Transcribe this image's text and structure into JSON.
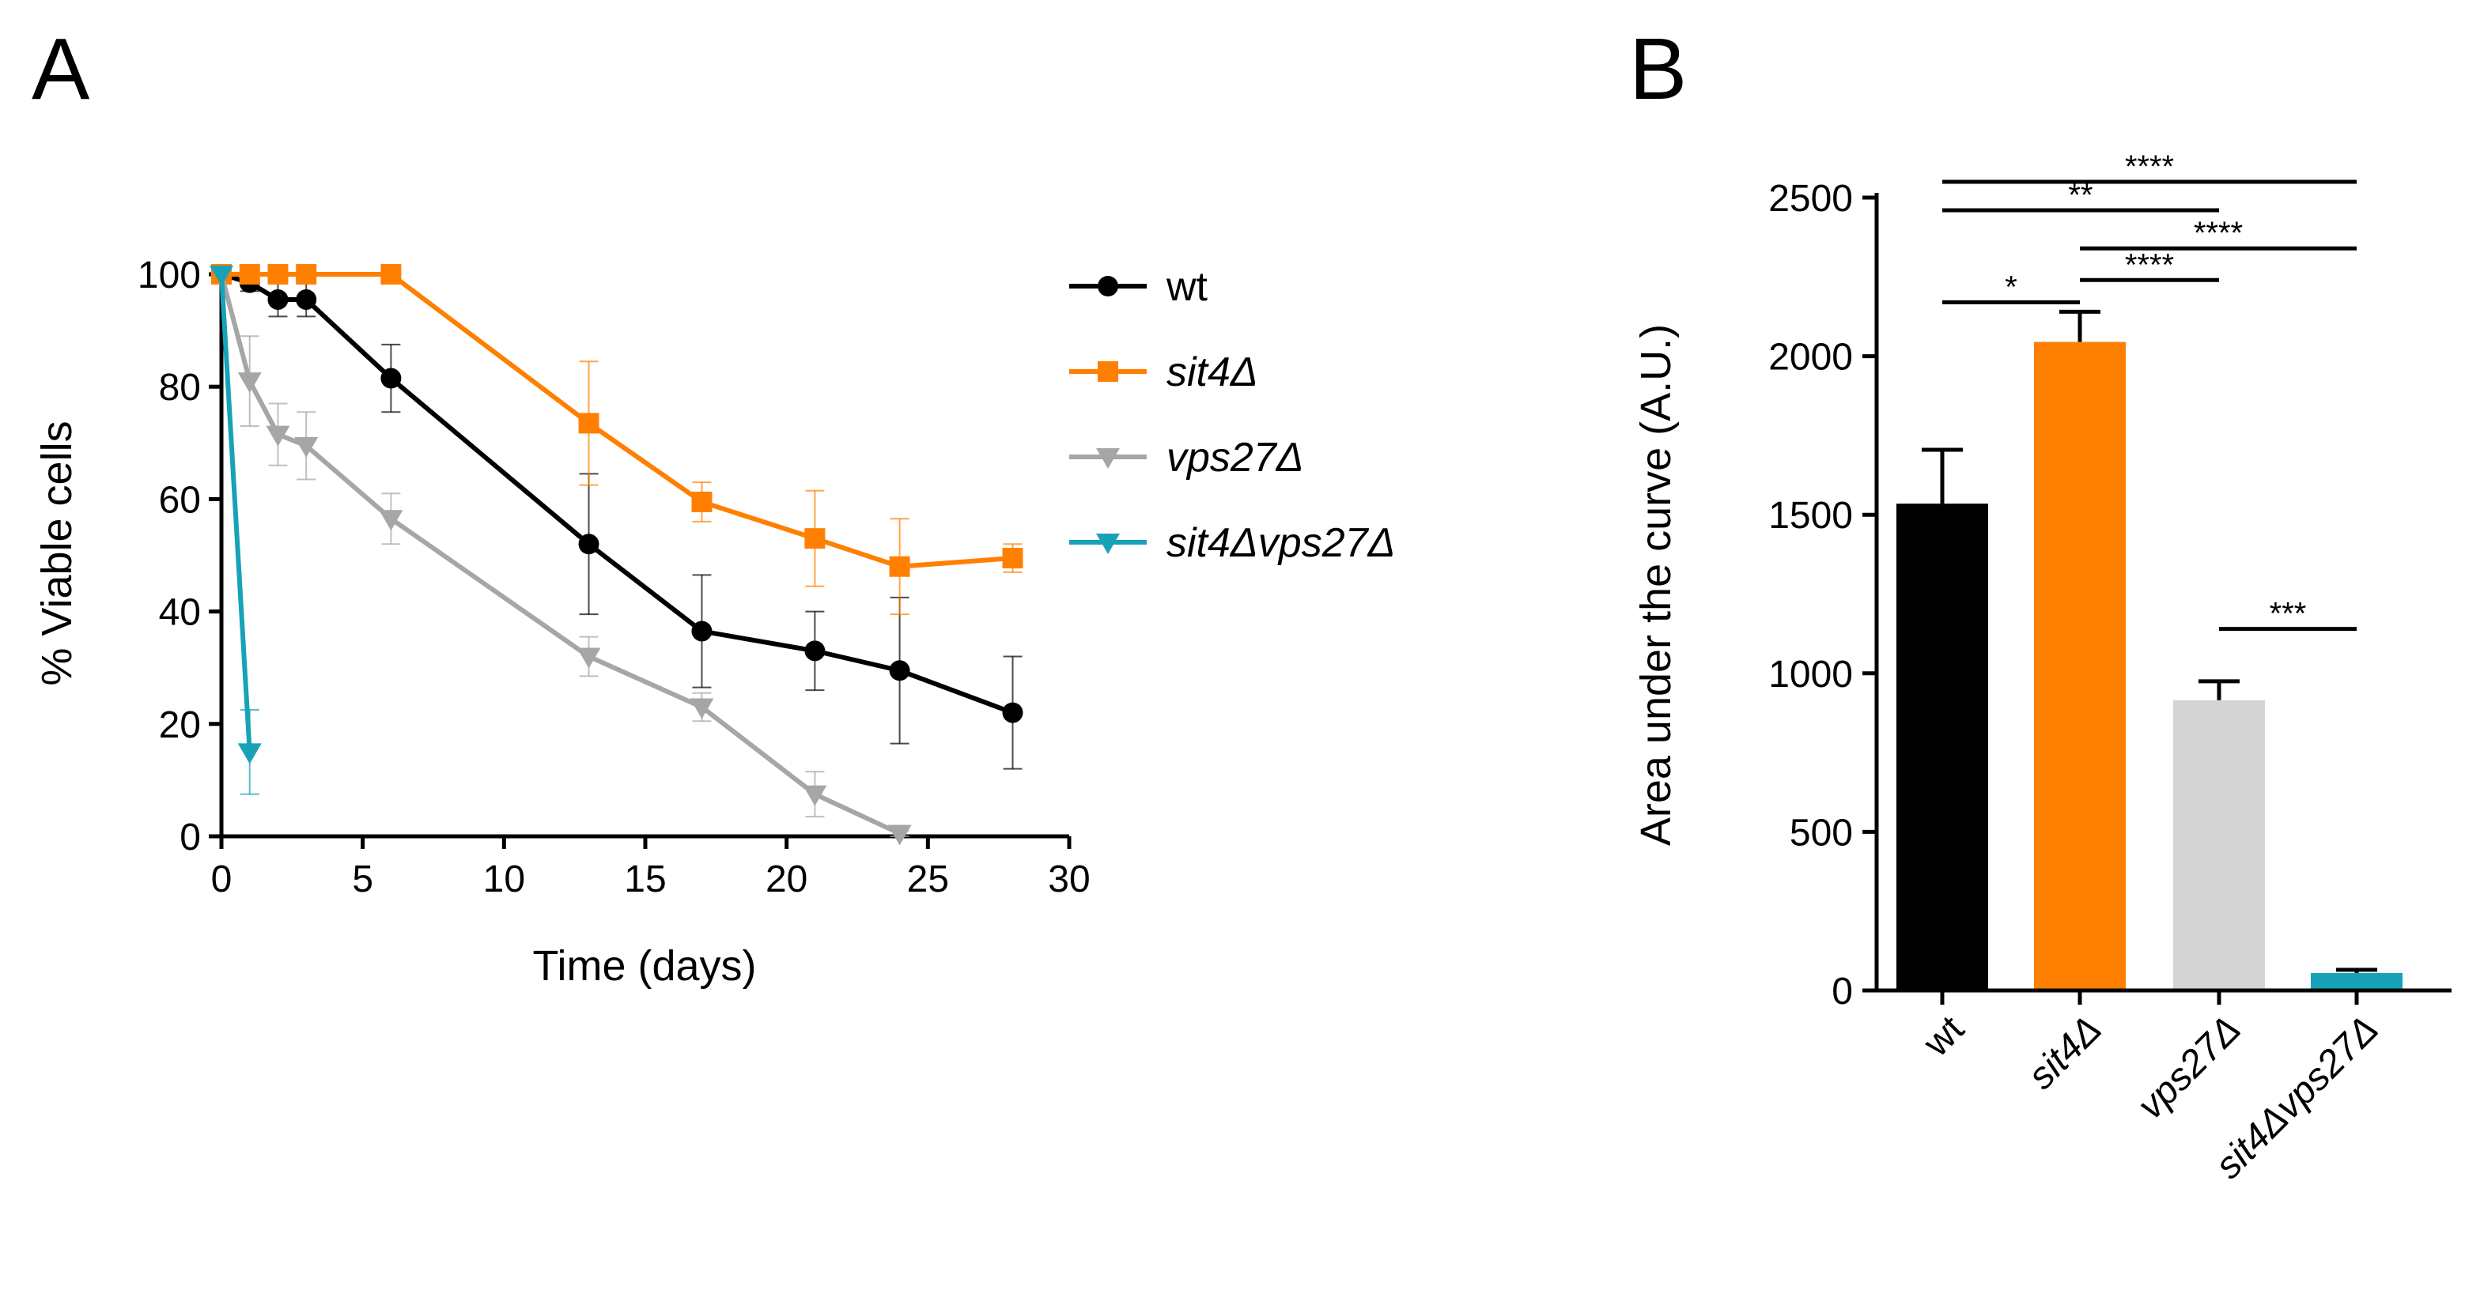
{
  "panels": {
    "a": "A",
    "b": "B"
  },
  "colors": {
    "wt": "#000000",
    "sit4": "#ff8000",
    "vps27": "#a6a6a8",
    "double": "#17a2b8",
    "vps27_bar": "#d4d4d4"
  },
  "chart_data": [
    {
      "type": "line",
      "panel": "A",
      "xlabel": "Time (days)",
      "ylabel": "% Viable cells",
      "xlim": [
        0,
        30
      ],
      "ylim": [
        0,
        100
      ],
      "xticks": [
        "0",
        "5",
        "10",
        "15",
        "20",
        "25",
        "30"
      ],
      "yticks": [
        "0",
        "20",
        "40",
        "60",
        "80",
        "100"
      ],
      "legend_position": "right",
      "series": [
        {
          "key": "wt",
          "name": "wt",
          "italic": false,
          "marker": "circle",
          "x": [
            0,
            1,
            2,
            3,
            6,
            13,
            17,
            21,
            24,
            28
          ],
          "y": [
            100,
            98.5,
            95.5,
            95.5,
            81.5,
            52,
            36.5,
            33,
            29.5,
            22
          ],
          "err": [
            0,
            1.5,
            3,
            3,
            6,
            12.5,
            10,
            7,
            13,
            10
          ]
        },
        {
          "key": "sit4",
          "name": "sit4Δ",
          "italic": true,
          "marker": "square",
          "x": [
            0,
            1,
            2,
            3,
            6,
            13,
            17,
            21,
            24,
            28
          ],
          "y": [
            100,
            100,
            100,
            100,
            100,
            73.5,
            59.5,
            53,
            48,
            49.5
          ],
          "err": [
            0,
            0,
            0,
            0,
            0,
            11,
            3.5,
            8.5,
            8.5,
            2.5
          ]
        },
        {
          "key": "vps27",
          "name": "vps27Δ",
          "italic": true,
          "marker": "tri-down",
          "x": [
            0,
            1,
            2,
            3,
            6,
            13,
            17,
            21,
            24
          ],
          "y": [
            100,
            81,
            71.5,
            69.5,
            56.5,
            32,
            23,
            7.5,
            0.5
          ],
          "err": [
            0,
            8,
            5.5,
            6,
            4.5,
            3.5,
            2.5,
            4,
            0.5
          ]
        },
        {
          "key": "double",
          "name": "sit4Δvps27Δ",
          "italic": true,
          "marker": "tri-down",
          "x": [
            0,
            1
          ],
          "y": [
            100,
            15
          ],
          "err": [
            0,
            7.5
          ]
        }
      ]
    },
    {
      "type": "bar",
      "panel": "B",
      "ylabel": "Area under the curve (A.U.)",
      "ylim": [
        0,
        2500
      ],
      "yticks": [
        "0",
        "500",
        "1000",
        "1500",
        "2000",
        "2500"
      ],
      "categories": [
        "wt",
        "sit4Δ",
        "vps27Δ",
        "sit4Δvps27Δ"
      ],
      "italic": [
        false,
        true,
        true,
        true
      ],
      "color_keys": [
        "wt",
        "sit4",
        "vps27_bar",
        "double"
      ],
      "values": [
        1535,
        2045,
        915,
        55
      ],
      "err": [
        170,
        95,
        60,
        10
      ],
      "significance": [
        {
          "from": 0,
          "to": 3,
          "label": "****",
          "y": 2550
        },
        {
          "from": 0,
          "to": 2,
          "label": "**",
          "y": 2460
        },
        {
          "from": 1,
          "to": 3,
          "label": "****",
          "y": 2340
        },
        {
          "from": 1,
          "to": 2,
          "label": "****",
          "y": 2240
        },
        {
          "from": 0,
          "to": 1,
          "label": "*",
          "y": 2170
        },
        {
          "from": 2,
          "to": 3,
          "label": "***",
          "y": 1140
        }
      ]
    }
  ]
}
